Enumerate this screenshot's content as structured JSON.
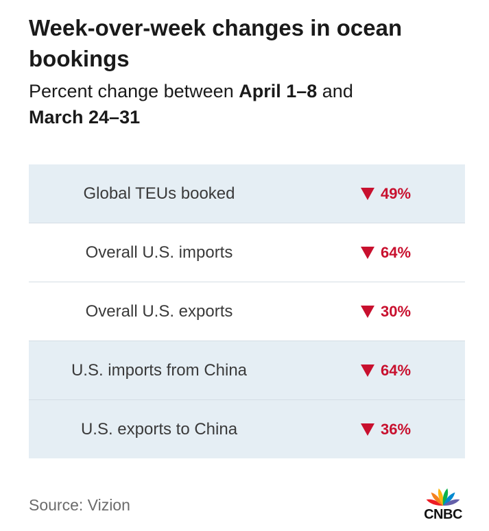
{
  "title": "Week-over-week changes in ocean bookings",
  "subtitle": {
    "prefix": "Percent change between ",
    "period1": "April 1–8",
    "middle": " and",
    "period2": "March 24–31"
  },
  "chart_data": {
    "type": "table",
    "direction": "down",
    "rows": [
      {
        "label": "Global TEUs booked",
        "value": "49%",
        "numeric": -49,
        "shaded": true
      },
      {
        "label": "Overall U.S. imports",
        "value": "64%",
        "numeric": -64,
        "shaded": false
      },
      {
        "label": "Overall U.S. exports",
        "value": "30%",
        "numeric": -30,
        "shaded": false
      },
      {
        "label": "U.S. imports from China",
        "value": "64%",
        "numeric": -64,
        "shaded": true
      },
      {
        "label": "U.S. exports to China",
        "value": "36%",
        "numeric": -36,
        "shaded": true
      }
    ]
  },
  "source": "Source: Vizion",
  "logo": {
    "text": "CNBC",
    "icon": "peacock-icon",
    "feather_colors": [
      "#ed1c24",
      "#f58220",
      "#fcb711",
      "#0db14b",
      "#0089d0",
      "#6460aa"
    ]
  },
  "colors": {
    "decrease": "#c8102e",
    "shaded_row": "#e5eef4"
  }
}
